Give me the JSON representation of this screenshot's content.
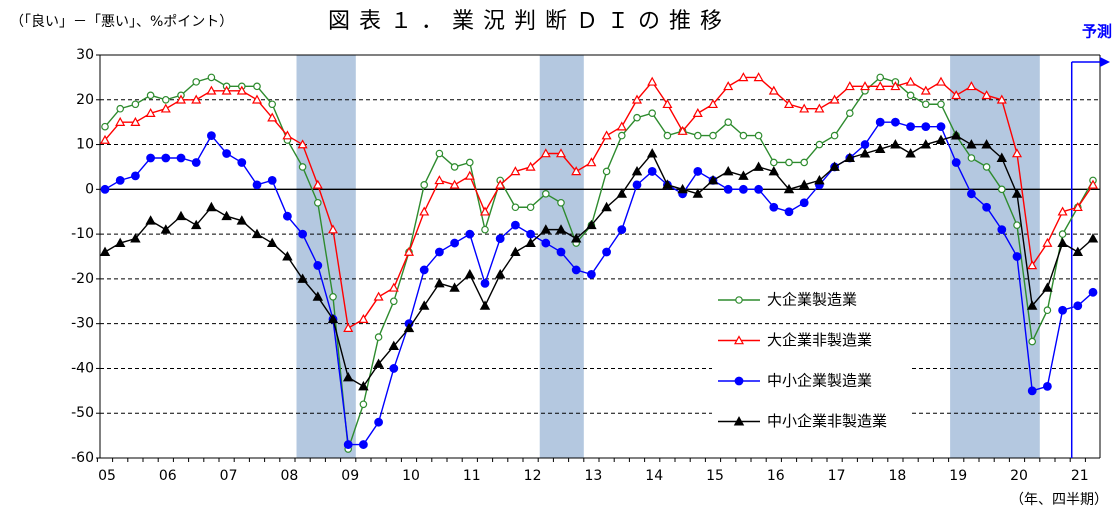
{
  "chart_data": {
    "type": "line",
    "title": "図表１．業況判断ＤＩの推移",
    "subtitle": "（「良い」－「悪い」、%ポイント）",
    "xlabel": "（年、四半期）",
    "annotation": "予測",
    "categories": [
      "05",
      null,
      null,
      null,
      "06",
      null,
      null,
      null,
      "07",
      null,
      null,
      null,
      "08",
      null,
      null,
      null,
      "09",
      null,
      null,
      null,
      "10",
      null,
      null,
      null,
      "11",
      null,
      null,
      null,
      "12",
      null,
      null,
      null,
      "13",
      null,
      null,
      null,
      "14",
      null,
      null,
      null,
      "15",
      null,
      null,
      null,
      "16",
      null,
      null,
      null,
      "17",
      null,
      null,
      null,
      "18",
      null,
      null,
      null,
      "19",
      null,
      null,
      null,
      "20",
      null,
      null,
      null,
      "21",
      null
    ],
    "ylim": [
      -60,
      30
    ],
    "yticks": [
      -60,
      -50,
      -40,
      -30,
      -20,
      -10,
      0,
      10,
      20,
      30
    ],
    "grid": true,
    "series": [
      {
        "name": "大企業製造業",
        "color": "#2e8b2e",
        "marker": "circle-open",
        "values": [
          14,
          18,
          19,
          21,
          20,
          21,
          24,
          25,
          23,
          23,
          23,
          19,
          11,
          5,
          -3,
          -24,
          -58,
          -48,
          -33,
          -25,
          -14,
          1,
          8,
          5,
          6,
          -9,
          2,
          -4,
          -4,
          -1,
          -3,
          -12,
          -8,
          4,
          12,
          16,
          17,
          12,
          13,
          12,
          12,
          15,
          12,
          12,
          6,
          6,
          6,
          10,
          12,
          17,
          22,
          25,
          24,
          21,
          19,
          19,
          12,
          7,
          5,
          0,
          -8,
          -34,
          -27,
          -10,
          -4,
          2
        ]
      },
      {
        "name": "大企業非製造業",
        "color": "#ff0000",
        "marker": "triangle-open",
        "values": [
          11,
          15,
          15,
          17,
          18,
          20,
          20,
          22,
          22,
          22,
          20,
          16,
          12,
          10,
          1,
          -9,
          -31,
          -29,
          -24,
          -22,
          -14,
          -5,
          2,
          1,
          3,
          -5,
          1,
          4,
          5,
          8,
          8,
          4,
          6,
          12,
          14,
          20,
          24,
          19,
          13,
          17,
          19,
          23,
          25,
          25,
          22,
          19,
          18,
          18,
          20,
          23,
          23,
          23,
          23,
          24,
          22,
          24,
          21,
          23,
          21,
          20,
          8,
          -17,
          -12,
          -5,
          -4,
          1
        ]
      },
      {
        "name": "中小企業製造業",
        "color": "#0000ff",
        "marker": "circle",
        "values": [
          0,
          2,
          3,
          7,
          7,
          7,
          6,
          12,
          8,
          6,
          1,
          2,
          -6,
          -10,
          -17,
          -29,
          -57,
          -57,
          -52,
          -40,
          -30,
          -18,
          -14,
          -12,
          -10,
          -21,
          -11,
          -8,
          -10,
          -12,
          -14,
          -18,
          -19,
          -14,
          -9,
          1,
          4,
          1,
          -1,
          4,
          2,
          0,
          0,
          0,
          -4,
          -5,
          -3,
          1,
          5,
          7,
          10,
          15,
          15,
          14,
          14,
          14,
          6,
          -1,
          -4,
          -9,
          -15,
          -45,
          -44,
          -27,
          -26,
          -23
        ]
      },
      {
        "name": "中小企業非製造業",
        "color": "#000000",
        "marker": "triangle",
        "values": [
          -14,
          -12,
          -11,
          -7,
          -9,
          -6,
          -8,
          -4,
          -6,
          -7,
          -10,
          -12,
          -15,
          -20,
          -24,
          -29,
          -42,
          -44,
          -39,
          -35,
          -31,
          -26,
          -21,
          -22,
          -19,
          -26,
          -19,
          -14,
          -12,
          -9,
          -9,
          -11,
          -8,
          -4,
          -1,
          4,
          8,
          1,
          0,
          -1,
          2,
          4,
          3,
          5,
          4,
          0,
          1,
          2,
          5,
          7,
          8,
          9,
          10,
          8,
          10,
          11,
          12,
          10,
          10,
          7,
          -1,
          -26,
          -22,
          -12,
          -14,
          -11
        ]
      }
    ]
  }
}
